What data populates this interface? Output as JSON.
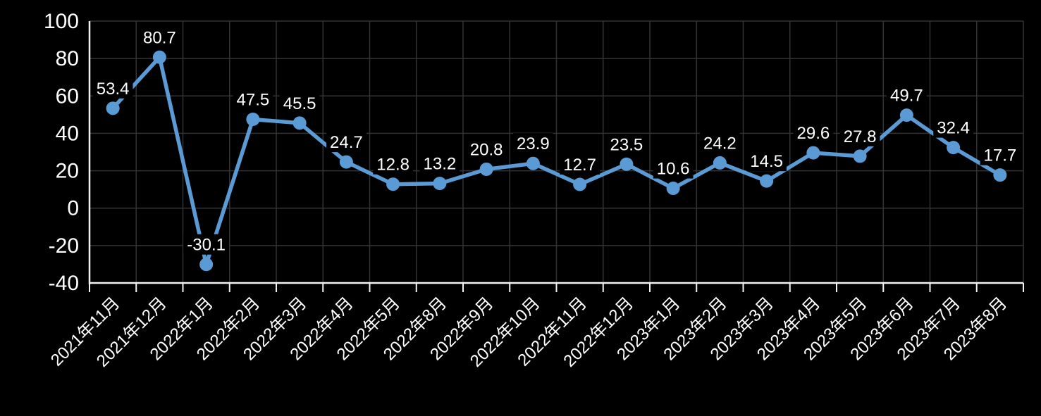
{
  "chart_data": {
    "type": "line",
    "title": "",
    "xlabel": "",
    "ylabel": "",
    "categories": [
      "2021年11月",
      "2021年12月",
      "2022年1月",
      "2022年2月",
      "2022年3月",
      "2022年4月",
      "2022年5月",
      "2022年8月",
      "2022年9月",
      "2022年10月",
      "2022年11月",
      "2022年12月",
      "2023年1月",
      "2023年2月",
      "2023年3月",
      "2023年4月",
      "2023年5月",
      "2023年6月",
      "2023年7月",
      "2023年8月"
    ],
    "values": [
      53.4,
      80.7,
      -30.1,
      47.5,
      45.5,
      24.7,
      12.8,
      13.2,
      20.8,
      23.9,
      12.7,
      23.5,
      10.6,
      24.2,
      14.5,
      29.6,
      27.8,
      49.7,
      32.4,
      17.7
    ],
    "value_labels": [
      "53.4",
      "80.7",
      "-30.1",
      "47.5",
      "45.5",
      "24.7",
      "12.8",
      "13.2",
      "20.8",
      "23.9",
      "12.7",
      "23.5",
      "10.6",
      "24.2",
      "14.5",
      "29.6",
      "27.8",
      "49.7",
      "32.4",
      "17.7"
    ],
    "y_ticks": [
      100,
      80,
      60,
      40,
      20,
      0,
      -20,
      -40
    ],
    "y_tick_labels": [
      "100",
      "80",
      "60",
      "40",
      "20",
      "0",
      "-20",
      "-40"
    ],
    "ylim": [
      -40,
      100
    ],
    "grid": true,
    "data_labels_position": "above",
    "legend": "none",
    "colors": {
      "background": "#000000",
      "series_line": "#5B9BD5",
      "marker": "#5B9BD5",
      "gridline": "#333333",
      "axis_line": "#F2F2F2",
      "text": "#FFFFFF",
      "data_label_box": "#000000"
    }
  }
}
